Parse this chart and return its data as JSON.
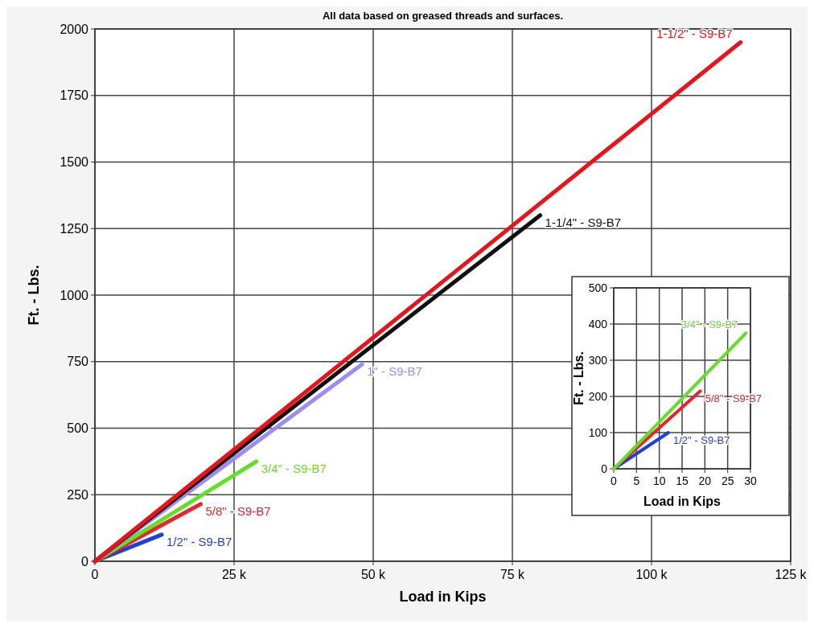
{
  "chart_data": [
    {
      "type": "line",
      "title": "All data based on greased threads and surfaces.",
      "xlabel": "Load in Kips",
      "ylabel": "Ft. - Lbs.",
      "xlim": [
        0,
        125
      ],
      "xticks": [
        0,
        {
          "value": 25,
          "label": "25 k"
        },
        {
          "value": 50,
          "label": "50 k"
        },
        {
          "value": 75,
          "label": "75 k"
        },
        {
          "value": 100,
          "label": "100 k"
        },
        {
          "value": 125,
          "label": "125 k"
        }
      ],
      "ylim": [
        0,
        2000
      ],
      "yticks": [
        0,
        250,
        500,
        750,
        1000,
        1250,
        1500,
        1750,
        2000
      ],
      "grid": true,
      "marker": "none",
      "line_style": "solid",
      "series": [
        {
          "name": "1/2\" - S9-B7",
          "color": "#1f3fd8",
          "x": [
            0,
            12
          ],
          "values": [
            0,
            100
          ]
        },
        {
          "name": "5/8\" - S9-B7",
          "color": "#e8232a",
          "x": [
            0,
            19
          ],
          "values": [
            0,
            215
          ]
        },
        {
          "name": "3/4\" - S9-B7",
          "color": "#66dd2a",
          "x": [
            0,
            29
          ],
          "values": [
            0,
            375
          ]
        },
        {
          "name": "1\" - S9-B7",
          "color": "#9d8cf2",
          "x": [
            0,
            48
          ],
          "values": [
            0,
            740
          ]
        },
        {
          "name": "1-1/4\" - S9-B7",
          "color": "#111111",
          "x": [
            0,
            80
          ],
          "values": [
            0,
            1300
          ]
        },
        {
          "name": "1-1/2\" - S9-B7",
          "color": "#e8141c",
          "x": [
            0,
            116
          ],
          "values": [
            0,
            1950
          ]
        }
      ]
    },
    {
      "type": "line",
      "xlabel": "Load in Kips",
      "ylabel": "Ft. - Lbs.",
      "xlim": [
        0,
        30
      ],
      "xticks": [
        0,
        5,
        10,
        15,
        20,
        25,
        30
      ],
      "ylim": [
        0,
        500
      ],
      "yticks": [
        0,
        100,
        200,
        300,
        400,
        500
      ],
      "grid": true,
      "marker": "none",
      "line_style": "solid",
      "series": [
        {
          "name": "1/2\" - S9-B7",
          "color": "#1f3fd8",
          "x": [
            0,
            12
          ],
          "values": [
            0,
            100
          ]
        },
        {
          "name": "5/8\" - S9-B7",
          "color": "#e8232a",
          "x": [
            0,
            19
          ],
          "values": [
            0,
            215
          ]
        },
        {
          "name": "3/4\" - S9-B7",
          "color": "#66dd2a",
          "x": [
            0,
            29
          ],
          "values": [
            0,
            375
          ]
        }
      ]
    }
  ]
}
